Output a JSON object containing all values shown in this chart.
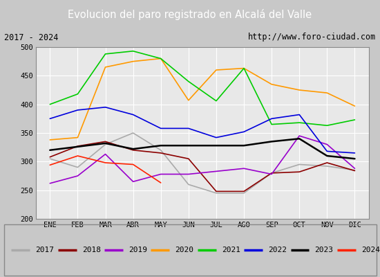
{
  "title": "Evolucion del paro registrado en Alcalá del Valle",
  "subtitle_left": "2017 - 2024",
  "subtitle_right": "http://www.foro-ciudad.com",
  "months": [
    "ENE",
    "FEB",
    "MAR",
    "ABR",
    "MAY",
    "JUN",
    "JUL",
    "AGO",
    "SEP",
    "OCT",
    "NOV",
    "DIC"
  ],
  "ylim": [
    200,
    500
  ],
  "yticks": [
    200,
    250,
    300,
    350,
    400,
    450,
    500
  ],
  "series": [
    {
      "year": "2017",
      "color": "#aaaaaa",
      "linewidth": 1.2,
      "data": [
        305,
        290,
        330,
        350,
        320,
        260,
        245,
        245,
        280,
        295,
        292,
        285
      ]
    },
    {
      "year": "2018",
      "color": "#8b0000",
      "linewidth": 1.2,
      "data": [
        308,
        327,
        335,
        320,
        315,
        305,
        248,
        248,
        280,
        282,
        298,
        284
      ]
    },
    {
      "year": "2019",
      "color": "#9900cc",
      "linewidth": 1.2,
      "data": [
        262,
        275,
        313,
        265,
        278,
        278,
        283,
        288,
        278,
        345,
        330,
        288
      ]
    },
    {
      "year": "2020",
      "color": "#ff9900",
      "linewidth": 1.2,
      "data": [
        338,
        342,
        465,
        475,
        480,
        407,
        460,
        463,
        435,
        425,
        420,
        397
      ]
    },
    {
      "year": "2021",
      "color": "#00cc00",
      "linewidth": 1.2,
      "data": [
        400,
        418,
        488,
        493,
        480,
        440,
        406,
        463,
        365,
        368,
        363,
        373
      ]
    },
    {
      "year": "2022",
      "color": "#0000dd",
      "linewidth": 1.2,
      "data": [
        375,
        390,
        395,
        382,
        358,
        358,
        342,
        352,
        375,
        382,
        318,
        315
      ]
    },
    {
      "year": "2023",
      "color": "#000000",
      "linewidth": 1.8,
      "data": [
        320,
        326,
        332,
        322,
        328,
        328,
        328,
        328,
        335,
        340,
        310,
        305
      ]
    },
    {
      "year": "2024",
      "color": "#ff2200",
      "linewidth": 1.2,
      "data": [
        294,
        310,
        298,
        295,
        263,
        null,
        null,
        null,
        null,
        null,
        null,
        null
      ]
    }
  ],
  "title_bg_color": "#5b8dd9",
  "title_font_color": "#ffffff",
  "subtitle_bg_color": "#e8e8e8",
  "plot_bg_color": "#e8e8e8",
  "grid_color": "#ffffff",
  "outer_bg_color": "#c8c8c8"
}
